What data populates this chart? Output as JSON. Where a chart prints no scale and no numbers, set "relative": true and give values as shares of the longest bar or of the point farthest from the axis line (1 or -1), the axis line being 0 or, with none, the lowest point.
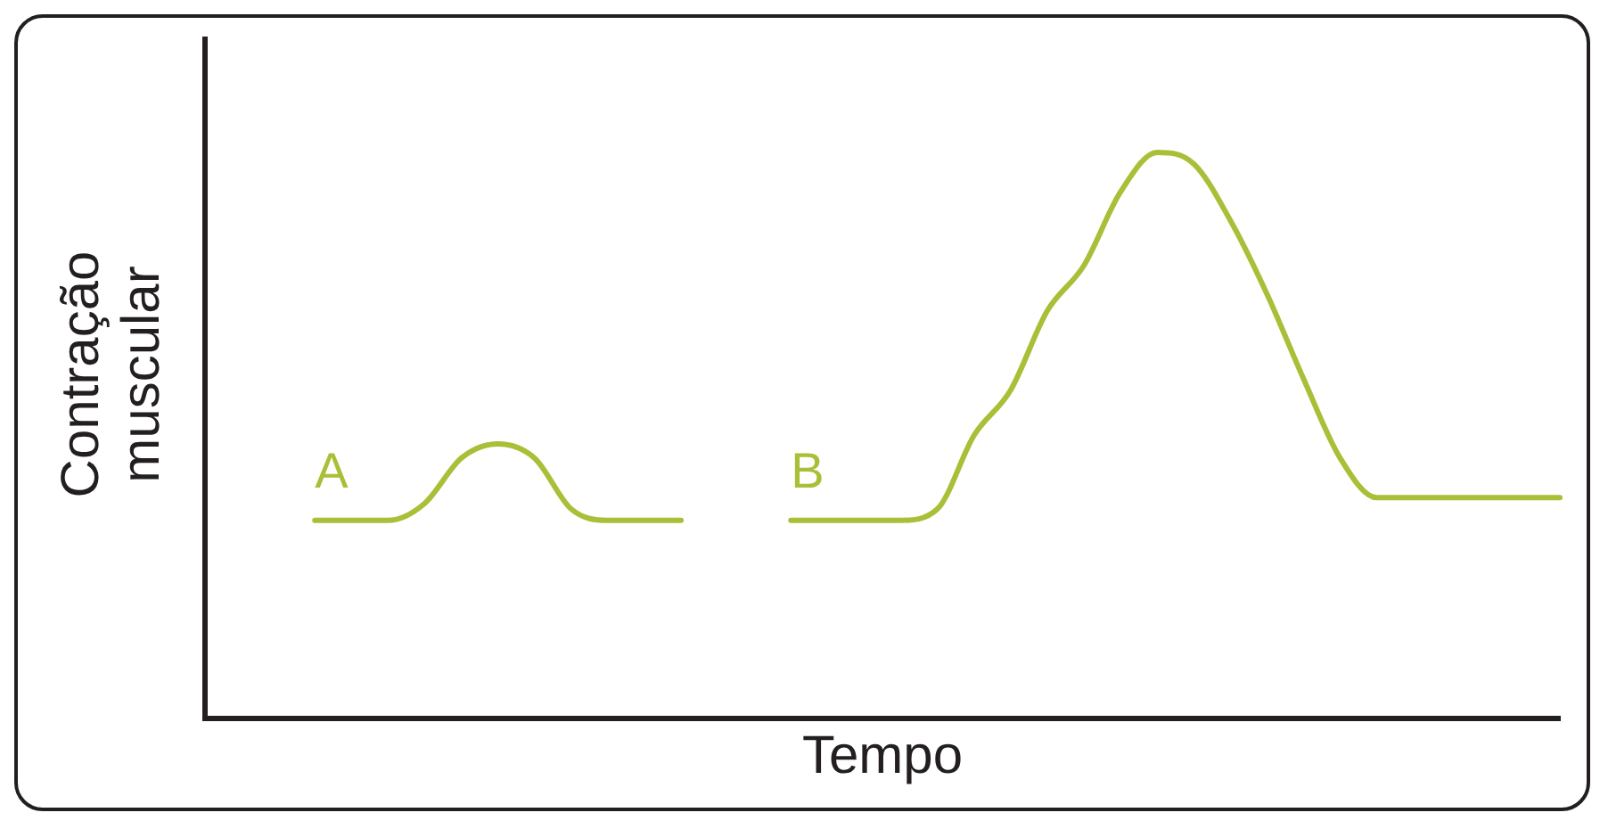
{
  "chart_data": {
    "type": "line",
    "relative": true,
    "xlabel": "Tempo",
    "ylabel": "Contração muscular",
    "legend": false,
    "grid": false,
    "marker": "none",
    "line_style": "solid",
    "categories": [
      null,
      null,
      null,
      null,
      null,
      null,
      null,
      null,
      null,
      null,
      null,
      null,
      null,
      null,
      null,
      null,
      null,
      null,
      null,
      null,
      null,
      null,
      null,
      null,
      null,
      null,
      null,
      null,
      null,
      null,
      null,
      null,
      null,
      null,
      null,
      null,
      null,
      null
    ],
    "series": [
      {
        "name": "A",
        "color": "#a9bf38",
        "values": [
          null,
          null,
          null,
          0.35,
          0.35,
          0.35,
          0.38,
          0.46,
          0.485,
          0.46,
          0.37,
          0.35,
          0.35,
          0.35,
          null,
          null,
          null,
          null,
          null,
          null,
          null,
          null,
          null,
          null,
          null,
          null,
          null,
          null,
          null,
          null,
          null,
          null,
          null,
          null,
          null,
          null,
          null,
          null
        ]
      },
      {
        "name": "B",
        "color": "#a9bf38",
        "values": [
          null,
          null,
          null,
          null,
          null,
          null,
          null,
          null,
          null,
          null,
          null,
          null,
          null,
          null,
          null,
          null,
          0.35,
          0.35,
          0.35,
          0.35,
          0.37,
          0.5,
          0.58,
          0.72,
          0.8,
          0.93,
          1,
          0.98,
          0.88,
          0.75,
          0.6,
          0.46,
          0.39,
          0.39,
          0.39,
          0.39,
          0.39,
          0.39
        ]
      }
    ]
  }
}
